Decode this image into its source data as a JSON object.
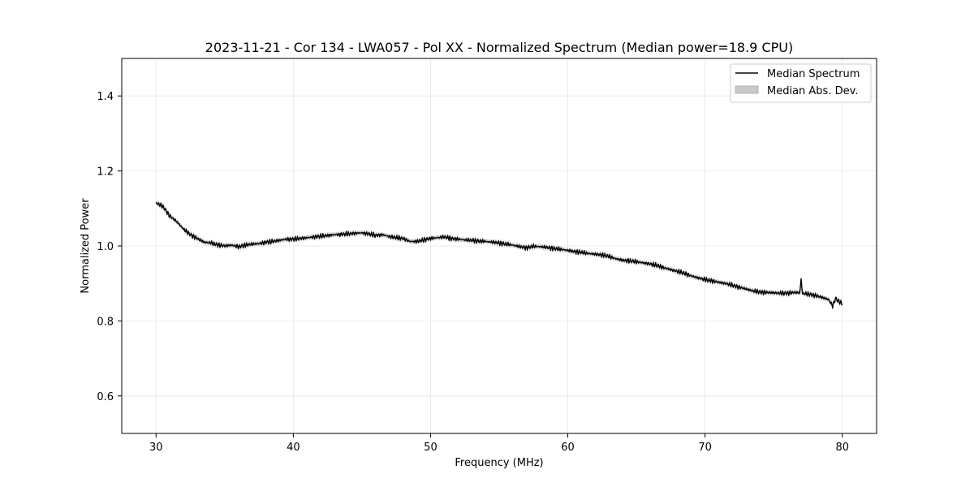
{
  "chart_data": {
    "type": "line",
    "title": "2023-11-21 - Cor 134 - LWA057 - Pol XX - Normalized Spectrum (Median power=18.9 CPU)",
    "xlabel": "Frequency (MHz)",
    "ylabel": "Normalized Power",
    "xlim": [
      27.5,
      82.5
    ],
    "ylim": [
      0.5,
      1.5
    ],
    "x_ticks": [
      30,
      40,
      50,
      60,
      70,
      80
    ],
    "y_ticks": [
      0.6,
      0.8,
      1.0,
      1.2,
      1.4
    ],
    "x_tick_labels": [
      "30",
      "40",
      "50",
      "60",
      "70",
      "80"
    ],
    "y_tick_labels": [
      "0.6",
      "0.8",
      "1.0",
      "1.2",
      "1.4"
    ],
    "grid": true,
    "legend_position": "top-right",
    "colors": {
      "line": "#000000",
      "band": "#bfbfbf",
      "grid": "#e6e6e6",
      "axes": "#000000"
    },
    "legend": {
      "line_label": "Median Spectrum",
      "band_label": "Median Abs. Dev."
    },
    "series": [
      {
        "name": "Median Spectrum",
        "x": [
          30.0,
          30.5,
          31.0,
          31.5,
          32.0,
          32.5,
          33.0,
          33.5,
          34.0,
          34.5,
          35.0,
          35.5,
          36.0,
          36.5,
          37.0,
          37.5,
          38.0,
          38.5,
          39.0,
          39.5,
          40.0,
          40.5,
          41.0,
          41.5,
          42.0,
          42.5,
          43.0,
          43.5,
          44.0,
          44.5,
          45.0,
          45.5,
          46.0,
          46.5,
          47.0,
          47.5,
          48.0,
          48.5,
          49.0,
          49.5,
          50.0,
          50.5,
          51.0,
          51.5,
          52.0,
          52.5,
          53.0,
          53.5,
          54.0,
          54.5,
          55.0,
          55.5,
          56.0,
          56.5,
          57.0,
          57.5,
          58.0,
          58.5,
          59.0,
          59.5,
          60.0,
          60.5,
          61.0,
          61.5,
          62.0,
          62.5,
          63.0,
          63.5,
          64.0,
          64.5,
          65.0,
          65.5,
          66.0,
          66.5,
          67.0,
          67.5,
          68.0,
          68.5,
          69.0,
          69.5,
          70.0,
          70.5,
          71.0,
          71.5,
          72.0,
          72.5,
          73.0,
          73.5,
          74.0,
          74.5,
          75.0,
          75.5,
          76.0,
          76.5,
          76.9,
          77.0,
          77.1,
          77.5,
          78.0,
          78.5,
          79.0,
          79.3,
          79.5,
          80.0
        ],
        "values": [
          1.115,
          1.105,
          1.08,
          1.065,
          1.045,
          1.03,
          1.02,
          1.01,
          1.008,
          1.003,
          1.0,
          1.002,
          0.998,
          1.002,
          1.005,
          1.006,
          1.01,
          1.012,
          1.015,
          1.018,
          1.018,
          1.02,
          1.022,
          1.024,
          1.026,
          1.028,
          1.03,
          1.031,
          1.032,
          1.034,
          1.035,
          1.032,
          1.028,
          1.03,
          1.025,
          1.022,
          1.02,
          1.012,
          1.012,
          1.016,
          1.02,
          1.022,
          1.024,
          1.02,
          1.018,
          1.016,
          1.015,
          1.013,
          1.012,
          1.01,
          1.008,
          1.005,
          1.002,
          0.998,
          0.995,
          0.999,
          0.998,
          0.996,
          0.993,
          0.991,
          0.988,
          0.985,
          0.983,
          0.98,
          0.978,
          0.976,
          0.972,
          0.966,
          0.962,
          0.96,
          0.958,
          0.955,
          0.952,
          0.948,
          0.942,
          0.937,
          0.932,
          0.927,
          0.92,
          0.915,
          0.91,
          0.907,
          0.903,
          0.9,
          0.895,
          0.89,
          0.885,
          0.88,
          0.877,
          0.876,
          0.875,
          0.874,
          0.874,
          0.876,
          0.875,
          0.91,
          0.873,
          0.872,
          0.868,
          0.863,
          0.857,
          0.84,
          0.86,
          0.845
        ]
      }
    ],
    "band_mad": 0.006
  }
}
